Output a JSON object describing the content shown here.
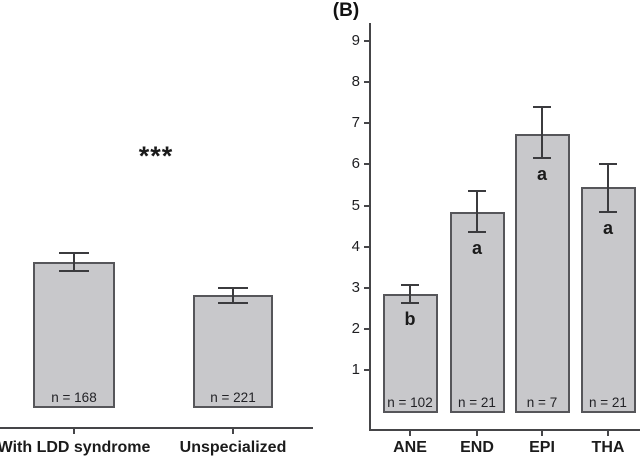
{
  "figure": {
    "panel_b_label": "(B)",
    "significance_stars": "***",
    "bar_fill_color": "#c8c8cb",
    "bar_border_color": "#56565a",
    "axis_color": "#454548"
  },
  "chart_data": [
    {
      "type": "bar",
      "panel": "left",
      "title": "",
      "xlabel": "",
      "ylabel": "",
      "categories": [
        "With LDD syndrome",
        "Unspecialized"
      ],
      "values": [
        3.55,
        2.75
      ],
      "error_high": [
        3.78,
        2.93
      ],
      "error_low": [
        3.34,
        2.56
      ],
      "bar_counts": [
        "n = 168",
        "n = 221"
      ],
      "annotations": [
        "***"
      ],
      "ylim": [
        0,
        9.5
      ],
      "grid": false,
      "legend": null,
      "y_axis_visible": false
    },
    {
      "type": "bar",
      "panel": "B",
      "title": "",
      "xlabel": "",
      "ylabel": "",
      "categories": [
        "ANE",
        "END",
        "EPI",
        "THA"
      ],
      "values": [
        2.85,
        4.85,
        6.75,
        5.45
      ],
      "error_high": [
        3.06,
        5.35,
        7.4,
        6.0
      ],
      "error_low": [
        2.62,
        4.35,
        6.15,
        4.85
      ],
      "bar_counts": [
        "n = 102",
        "n = 21",
        "n = 7",
        "n = 21"
      ],
      "sig_letters": [
        "b",
        "a",
        "a",
        "a"
      ],
      "ytick_labels": [
        "1",
        "2",
        "3",
        "4",
        "5",
        "6",
        "7",
        "8",
        "9"
      ],
      "yticks": [
        1,
        2,
        3,
        4,
        5,
        6,
        7,
        8,
        9
      ],
      "ylim": [
        0,
        9.5
      ],
      "grid": false,
      "legend": null,
      "y_axis_visible": true
    }
  ]
}
